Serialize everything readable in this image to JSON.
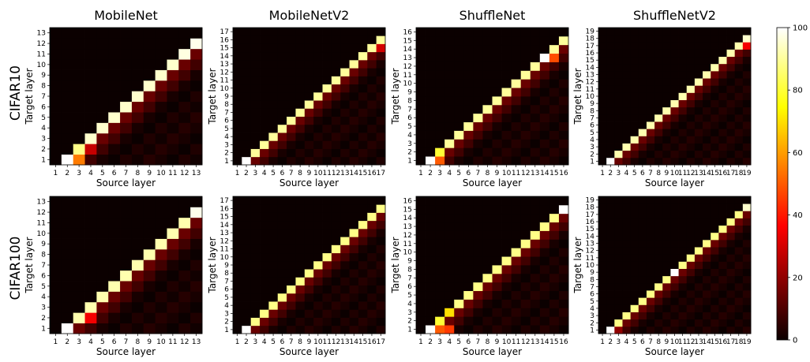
{
  "figure": {
    "column_titles": [
      "MobileNet",
      "MobileNetV2",
      "ShuffleNet",
      "ShuffleNetV2"
    ],
    "row_labels": [
      "CIFAR10",
      "CIFAR100"
    ],
    "xlabel": "Source layer",
    "ylabel": "Target layer",
    "colormap": "hot",
    "colorbar": {
      "min": 0,
      "max": 100,
      "ticks": [
        0,
        20,
        40,
        60,
        80,
        100
      ]
    }
  },
  "chart_data": [
    {
      "type": "heatmap",
      "dataset": "CIFAR10",
      "model": "MobileNet",
      "n_layers": 13,
      "xlabel": "Source layer",
      "ylabel": "Target layer",
      "pattern": "value(source,target) ~ 95 on diagonal source = target+1; near 0 elsewhere",
      "highlights": [
        {
          "source": 2,
          "target": 1,
          "value": 100
        },
        {
          "source": 3,
          "target": 1,
          "value": 55
        },
        {
          "source": 3,
          "target": 2,
          "value": 88
        },
        {
          "source": 4,
          "target": 2,
          "value": 28
        },
        {
          "source": 13,
          "target": 12,
          "value": 98
        },
        {
          "source": 12,
          "target": 11,
          "value": 97
        }
      ]
    },
    {
      "type": "heatmap",
      "dataset": "CIFAR10",
      "model": "MobileNetV2",
      "n_layers": 17,
      "xlabel": "Source layer",
      "ylabel": "Target layer",
      "pattern": "value(source,target) ~ 90 on diagonal source = target+1; near 0 elsewhere",
      "highlights": [
        {
          "source": 2,
          "target": 1,
          "value": 100
        },
        {
          "source": 17,
          "target": 16,
          "value": 90
        },
        {
          "source": 17,
          "target": 15,
          "value": 30
        }
      ]
    },
    {
      "type": "heatmap",
      "dataset": "CIFAR10",
      "model": "ShuffleNet",
      "n_layers": 16,
      "xlabel": "Source layer",
      "ylabel": "Target layer",
      "pattern": "value(source,target) ~ 90 on diagonal source = target+1; near 0 elsewhere",
      "highlights": [
        {
          "source": 2,
          "target": 1,
          "value": 100
        },
        {
          "source": 3,
          "target": 1,
          "value": 50
        },
        {
          "source": 3,
          "target": 2,
          "value": 80
        },
        {
          "source": 14,
          "target": 13,
          "value": 100
        },
        {
          "source": 15,
          "target": 13,
          "value": 48
        }
      ]
    },
    {
      "type": "heatmap",
      "dataset": "CIFAR10",
      "model": "ShuffleNetV2",
      "n_layers": 19,
      "xlabel": "Source layer",
      "ylabel": "Target layer",
      "pattern": "value(source,target) ~ 92 on diagonal source = target+1; near 0 elsewhere",
      "highlights": [
        {
          "source": 2,
          "target": 1,
          "value": 100
        },
        {
          "source": 19,
          "target": 18,
          "value": 95
        },
        {
          "source": 19,
          "target": 17,
          "value": 35
        }
      ]
    },
    {
      "type": "heatmap",
      "dataset": "CIFAR100",
      "model": "MobileNet",
      "n_layers": 13,
      "xlabel": "Source layer",
      "ylabel": "Target layer",
      "pattern": "value(source,target) ~ 92 on diagonal source = target+1; near 0 elsewhere",
      "highlights": [
        {
          "source": 2,
          "target": 1,
          "value": 100
        },
        {
          "source": 3,
          "target": 2,
          "value": 92
        },
        {
          "source": 4,
          "target": 2,
          "value": 35
        },
        {
          "source": 13,
          "target": 12,
          "value": 98
        }
      ]
    },
    {
      "type": "heatmap",
      "dataset": "CIFAR100",
      "model": "MobileNetV2",
      "n_layers": 17,
      "xlabel": "Source layer",
      "ylabel": "Target layer",
      "pattern": "value(source,target) ~ 88 on diagonal source = target+1; near 0 elsewhere",
      "highlights": [
        {
          "source": 2,
          "target": 1,
          "value": 100
        },
        {
          "source": 17,
          "target": 16,
          "value": 88
        }
      ]
    },
    {
      "type": "heatmap",
      "dataset": "CIFAR100",
      "model": "ShuffleNet",
      "n_layers": 16,
      "xlabel": "Source layer",
      "ylabel": "Target layer",
      "pattern": "value(source,target) ~ 88 on diagonal source = target+1; near 0 elsewhere",
      "highlights": [
        {
          "source": 2,
          "target": 1,
          "value": 100
        },
        {
          "source": 3,
          "target": 1,
          "value": 50
        },
        {
          "source": 4,
          "target": 1,
          "value": 45
        },
        {
          "source": 3,
          "target": 2,
          "value": 80
        },
        {
          "source": 4,
          "target": 3,
          "value": 70
        },
        {
          "source": 16,
          "target": 15,
          "value": 100
        }
      ]
    },
    {
      "type": "heatmap",
      "dataset": "CIFAR100",
      "model": "ShuffleNetV2",
      "n_layers": 19,
      "xlabel": "Source layer",
      "ylabel": "Target layer",
      "pattern": "value(source,target) ~ 88 on diagonal source = target+1; near 0 elsewhere",
      "highlights": [
        {
          "source": 2,
          "target": 1,
          "value": 100
        },
        {
          "source": 3,
          "target": 1,
          "value": 20
        },
        {
          "source": 10,
          "target": 9,
          "value": 100
        },
        {
          "source": 19,
          "target": 18,
          "value": 95
        }
      ]
    }
  ]
}
